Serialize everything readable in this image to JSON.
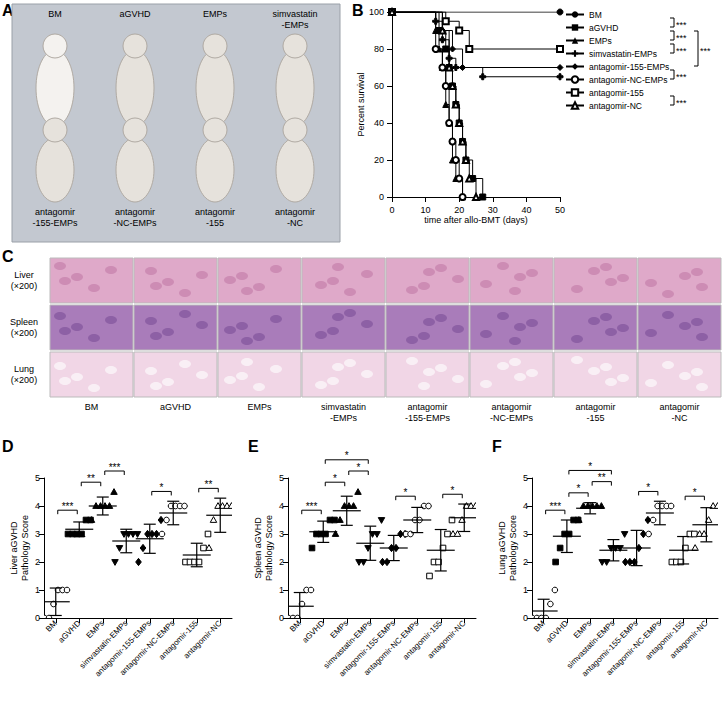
{
  "chart_data": [
    {
      "panel": "B",
      "type": "line",
      "line_style": "step",
      "color": "#000000",
      "grid": false,
      "legend": "right",
      "xlabel": "time after allo-BMT (days)",
      "ylabel": "Percent survival",
      "xlim": [
        0,
        50
      ],
      "xticks": [
        0,
        10,
        20,
        30,
        40,
        50
      ],
      "ylim": [
        0,
        100
      ],
      "yticks": [
        0,
        20,
        40,
        60,
        80,
        100
      ],
      "series": [
        {
          "name": "BM",
          "marker": "circle",
          "x": [
            0,
            50
          ],
          "values": [
            100,
            100
          ]
        },
        {
          "name": "aGVHD",
          "marker": "square",
          "x": [
            0,
            14,
            16,
            17,
            18,
            19,
            20,
            21,
            22,
            24,
            27
          ],
          "values": [
            100,
            90,
            80,
            70,
            60,
            50,
            40,
            30,
            20,
            10,
            0
          ]
        },
        {
          "name": "EMPs",
          "marker": "triangle",
          "x": [
            0,
            13,
            14,
            15,
            16,
            17,
            18,
            19,
            21
          ],
          "values": [
            100,
            90,
            80,
            70,
            50,
            40,
            20,
            10,
            0
          ]
        },
        {
          "name": "simvastatin-EMPs",
          "marker": "cross",
          "x": [
            0,
            13,
            15,
            17,
            19,
            27,
            50
          ],
          "values": [
            100,
            95,
            85,
            75,
            70,
            65,
            65
          ]
        },
        {
          "name": "antagomir-155-EMPs",
          "marker": "diamond",
          "x": [
            0,
            15,
            18,
            21,
            50
          ],
          "values": [
            100,
            90,
            80,
            70,
            70
          ]
        },
        {
          "name": "antagomir-NC-EMPs",
          "marker": "open_circle",
          "x": [
            0,
            13,
            15,
            16,
            17,
            18,
            19,
            20,
            21
          ],
          "values": [
            100,
            80,
            70,
            60,
            40,
            30,
            20,
            10,
            0
          ]
        },
        {
          "name": "antagomir-155",
          "marker": "open_square",
          "x": [
            0,
            16,
            20,
            23,
            50
          ],
          "values": [
            100,
            95,
            90,
            80,
            80
          ]
        },
        {
          "name": "antagomir-NC",
          "marker": "open_triangle",
          "x": [
            0,
            15,
            17,
            18,
            19,
            20,
            21,
            22,
            23,
            25
          ],
          "values": [
            100,
            90,
            70,
            60,
            50,
            40,
            30,
            20,
            10,
            0
          ]
        }
      ],
      "significance": [
        {
          "pair": [
            "BM",
            "aGVHD"
          ],
          "label": "***"
        },
        {
          "pair": [
            "aGVHD",
            "EMPs"
          ],
          "label": "***"
        },
        {
          "pair": [
            "EMPs",
            "simvastatin-EMPs"
          ],
          "label": "***"
        },
        {
          "pair": [
            "aGVHD",
            "antagomir-155-EMPs"
          ],
          "label": "***"
        },
        {
          "pair": [
            "antagomir-155-EMPs",
            "antagomir-NC-EMPs"
          ],
          "label": "***"
        },
        {
          "pair": [
            "antagomir-155",
            "antagomir-NC"
          ],
          "label": "***"
        }
      ]
    },
    {
      "panel": "D",
      "type": "scatter",
      "color": "#000000",
      "grid": false,
      "ylabel": "Liver aGVHD\nPathology Score",
      "ylim": [
        0,
        5
      ],
      "yticks": [
        0,
        1,
        2,
        3,
        4,
        5
      ],
      "series": [
        {
          "name": "BM",
          "marker": "open_circle",
          "values": [
            0,
            0,
            0.5,
            1,
            1,
            1
          ],
          "mean": 0.58,
          "sd": 0.49
        },
        {
          "name": "aGVHD",
          "marker": "square",
          "values": [
            3,
            3,
            3,
            3,
            3.5,
            3.5
          ],
          "mean": 3.17,
          "sd": 0.26
        },
        {
          "name": "EMPs",
          "marker": "triangle",
          "values": [
            3.5,
            4,
            4,
            4,
            4,
            4.5
          ],
          "mean": 4.0,
          "sd": 0.32
        },
        {
          "name": "simvastatin-EMPs",
          "marker": "triangle_down",
          "values": [
            2,
            2.5,
            3,
            3,
            3,
            3
          ],
          "mean": 2.75,
          "sd": 0.42
        },
        {
          "name": "antagomir-155-EMPs",
          "marker": "diamond",
          "values": [
            2,
            2.5,
            3,
            3,
            3,
            3.5
          ],
          "mean": 2.83,
          "sd": 0.52
        },
        {
          "name": "antagomir-NC-EMPs",
          "marker": "open_circle",
          "values": [
            3,
            3.5,
            4,
            4,
            4,
            4
          ],
          "mean": 3.75,
          "sd": 0.42
        },
        {
          "name": "antagomir-155",
          "marker": "open_square",
          "values": [
            2,
            2,
            2,
            2,
            2.5,
            3
          ],
          "mean": 2.25,
          "sd": 0.42
        },
        {
          "name": "antagomir-NC",
          "marker": "open_triangle",
          "values": [
            2.5,
            3.5,
            4,
            4,
            4,
            4
          ],
          "mean": 3.67,
          "sd": 0.61
        }
      ],
      "significance": [
        {
          "pair": [
            "BM",
            "aGVHD"
          ],
          "label": "***"
        },
        {
          "pair": [
            "aGVHD",
            "EMPs"
          ],
          "label": "**"
        },
        {
          "pair": [
            "EMPs",
            "simvastatin-EMPs"
          ],
          "label": "***"
        },
        {
          "pair": [
            "antagomir-155-EMPs",
            "antagomir-NC-EMPs"
          ],
          "label": "*"
        },
        {
          "pair": [
            "antagomir-155",
            "antagomir-NC"
          ],
          "label": "**"
        }
      ]
    },
    {
      "panel": "E",
      "type": "scatter",
      "color": "#000000",
      "grid": false,
      "ylabel": "Spleen aGVHD\nPathology Score",
      "ylim": [
        0,
        5
      ],
      "yticks": [
        0,
        1,
        2,
        3,
        4,
        5
      ],
      "series": [
        {
          "name": "BM",
          "marker": "open_circle",
          "values": [
            0,
            0,
            0,
            0.5,
            1,
            1
          ],
          "mean": 0.42,
          "sd": 0.49
        },
        {
          "name": "aGVHD",
          "marker": "square",
          "values": [
            2.5,
            3,
            3,
            3,
            3.5,
            3.5
          ],
          "mean": 3.08,
          "sd": 0.38
        },
        {
          "name": "EMPs",
          "marker": "triangle",
          "values": [
            3,
            3.5,
            4,
            4,
            4,
            4.5
          ],
          "mean": 3.83,
          "sd": 0.52
        },
        {
          "name": "simvastatin-EMPs",
          "marker": "triangle_down",
          "values": [
            2,
            2,
            2.5,
            3,
            3,
            3.5
          ],
          "mean": 2.67,
          "sd": 0.61
        },
        {
          "name": "antagomir-155-EMPs",
          "marker": "diamond",
          "values": [
            2,
            2,
            2.5,
            2.5,
            3,
            3
          ],
          "mean": 2.5,
          "sd": 0.45
        },
        {
          "name": "antagomir-NC-EMPs",
          "marker": "open_circle",
          "values": [
            3,
            3,
            3.5,
            3.5,
            4,
            4
          ],
          "mean": 3.5,
          "sd": 0.45
        },
        {
          "name": "antagomir-155",
          "marker": "open_square",
          "values": [
            1.5,
            2,
            2,
            2.5,
            3,
            3.5
          ],
          "mean": 2.42,
          "sd": 0.74
        },
        {
          "name": "antagomir-NC",
          "marker": "open_triangle",
          "values": [
            3,
            3,
            3.5,
            4,
            4,
            4
          ],
          "mean": 3.58,
          "sd": 0.49
        }
      ],
      "significance": [
        {
          "pair": [
            "BM",
            "aGVHD"
          ],
          "label": "***"
        },
        {
          "pair": [
            "aGVHD",
            "EMPs"
          ],
          "label": "*"
        },
        {
          "pair": [
            "EMPs",
            "simvastatin-EMPs"
          ],
          "label": "*"
        },
        {
          "pair": [
            "aGVHD",
            "simvastatin-EMPs"
          ],
          "label": "*"
        },
        {
          "pair": [
            "antagomir-155-EMPs",
            "antagomir-NC-EMPs"
          ],
          "label": "*"
        },
        {
          "pair": [
            "antagomir-155",
            "antagomir-NC"
          ],
          "label": "*"
        }
      ]
    },
    {
      "panel": "F",
      "type": "scatter",
      "color": "#000000",
      "grid": false,
      "ylabel": "Lung aGVHD\nPathology Score",
      "ylim": [
        0,
        5
      ],
      "yticks": [
        0,
        1,
        2,
        3,
        4,
        5
      ],
      "series": [
        {
          "name": "BM",
          "marker": "open_circle",
          "values": [
            0,
            0,
            0,
            0,
            0.5,
            1
          ],
          "mean": 0.25,
          "sd": 0.42
        },
        {
          "name": "aGVHD",
          "marker": "square",
          "values": [
            2,
            2.5,
            3,
            3,
            3.5,
            3.5
          ],
          "mean": 2.92,
          "sd": 0.58
        },
        {
          "name": "EMPs",
          "marker": "triangle",
          "values": [
            3.5,
            4,
            4,
            4,
            4,
            4
          ],
          "mean": 3.92,
          "sd": 0.2
        },
        {
          "name": "simvastatin-EMPs",
          "marker": "triangle_down",
          "values": [
            2,
            2,
            2.5,
            2.5,
            2.5,
            3
          ],
          "mean": 2.42,
          "sd": 0.38
        },
        {
          "name": "antagomir-155-EMPs",
          "marker": "diamond",
          "values": [
            2,
            2,
            2,
            2.5,
            3,
            3.5
          ],
          "mean": 2.5,
          "sd": 0.63
        },
        {
          "name": "antagomir-NC-EMPs",
          "marker": "open_circle",
          "values": [
            3,
            3.5,
            4,
            4,
            4,
            4
          ],
          "mean": 3.75,
          "sd": 0.42
        },
        {
          "name": "antagomir-155",
          "marker": "open_square",
          "values": [
            2,
            2,
            2,
            2.5,
            3,
            3
          ],
          "mean": 2.42,
          "sd": 0.49
        },
        {
          "name": "antagomir-NC",
          "marker": "open_triangle",
          "values": [
            2.5,
            3,
            3,
            3.5,
            4,
            4
          ],
          "mean": 3.33,
          "sd": 0.61
        }
      ],
      "significance": [
        {
          "pair": [
            "BM",
            "aGVHD"
          ],
          "label": "***"
        },
        {
          "pair": [
            "aGVHD",
            "EMPs"
          ],
          "label": "*"
        },
        {
          "pair": [
            "EMPs",
            "simvastatin-EMPs"
          ],
          "label": "**"
        },
        {
          "pair": [
            "aGVHD",
            "simvastatin-EMPs"
          ],
          "label": "*"
        },
        {
          "pair": [
            "antagomir-155-EMPs",
            "antagomir-NC-EMPs"
          ],
          "label": "*"
        },
        {
          "pair": [
            "antagomir-155",
            "antagomir-NC"
          ],
          "label": "*"
        }
      ]
    }
  ],
  "photo": {
    "panel": "A",
    "labels": [
      "BM",
      "aGVHD",
      "EMPs",
      "simvastatin\n-EMPs",
      "antagomir\n-155-EMPs",
      "antagomir\n-NC-EMPs",
      "antagomir\n-155",
      "antagomir\n-NC"
    ]
  },
  "histology": {
    "panel": "C",
    "rows": [
      "Liver\n(×200)",
      "Spleen\n(×200)",
      "Lung\n(×200)"
    ],
    "columns": [
      "BM",
      "aGVHD",
      "EMPs",
      "simvastatin\n-EMPs",
      "antagomir\n-155-EMPs",
      "antagomir\n-NC-EMPs",
      "antagomir\n-155",
      "antagomir\n-NC"
    ]
  }
}
